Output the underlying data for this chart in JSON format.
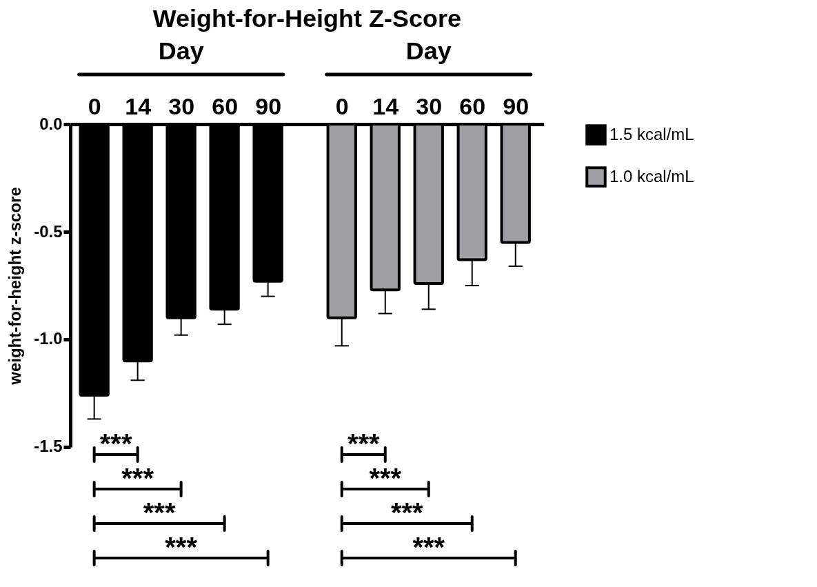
{
  "chart_data": {
    "type": "bar",
    "title": "Weight-for-Height Z-Score",
    "ylabel": "weight-for-height z-score",
    "categories": [
      "0",
      "14",
      "30",
      "60",
      "90",
      "0",
      "14",
      "30",
      "60",
      "90"
    ],
    "series": [
      {
        "name": "1.5 kcal/mL",
        "color": "#000000",
        "values": [
          -1.26,
          -1.1,
          -0.9,
          -0.86,
          -0.73,
          null,
          null,
          null,
          null,
          null
        ],
        "errors": [
          [
            -1.37,
            -1.26
          ],
          [
            -1.19,
            -1.1
          ],
          [
            -0.98,
            -0.9
          ],
          [
            -0.93,
            -0.86
          ],
          [
            -0.8,
            -0.73
          ],
          null,
          null,
          null,
          null,
          null
        ]
      },
      {
        "name": "1.0 kcal/mL",
        "color": "#a0a0a4",
        "values": [
          null,
          null,
          null,
          null,
          null,
          -0.9,
          -0.77,
          -0.74,
          -0.63,
          -0.55
        ],
        "errors": [
          null,
          null,
          null,
          null,
          null,
          [
            -1.03,
            -0.9
          ],
          [
            -0.88,
            -0.77
          ],
          [
            -0.86,
            -0.74
          ],
          [
            -0.75,
            -0.63
          ],
          [
            -0.66,
            -0.55
          ]
        ]
      }
    ],
    "ylim": [
      -1.5,
      0
    ],
    "yticks": [
      {
        "value": 0,
        "label": "0.0"
      },
      {
        "value": -0.5,
        "label": "-0.5"
      },
      {
        "value": -1,
        "label": "-1.0"
      },
      {
        "value": -1.5,
        "label": "-1.5"
      }
    ],
    "annotations": [
      "Day",
      "Day",
      "***",
      "***",
      "***",
      "***",
      "***",
      "***",
      "***",
      "***"
    ],
    "legend": "top right"
  }
}
